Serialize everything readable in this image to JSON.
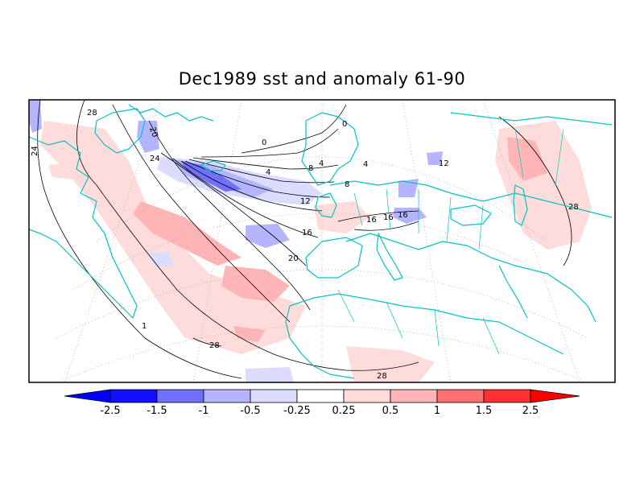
{
  "title": "Dec1989 sst and anomaly 61-90",
  "colors": {
    "coast": "#00c5c5",
    "neg_strong": "#1010ff",
    "neg_mid": "#7070ff",
    "neg_weak": "#b5b5ff",
    "neg_faint": "#dcdcff",
    "pos_faint": "#ffdcdc",
    "pos_weak": "#ffb5b5",
    "pos_mid": "#ff7070",
    "pos_strong": "#ff1010"
  },
  "contour_labels": [
    "28",
    "24",
    "20",
    "24",
    "0",
    "4",
    "8",
    "12",
    "16",
    "20",
    "0",
    "4",
    "8",
    "12",
    "16",
    "16",
    "16",
    "28",
    "1",
    "28",
    "28",
    "4"
  ],
  "colorbar": {
    "labels": [
      "-2.5",
      "-1.5",
      "-1",
      "-0.5",
      "-0.25",
      "0.25",
      "0.5",
      "1",
      "1.5",
      "2.5"
    ]
  }
}
